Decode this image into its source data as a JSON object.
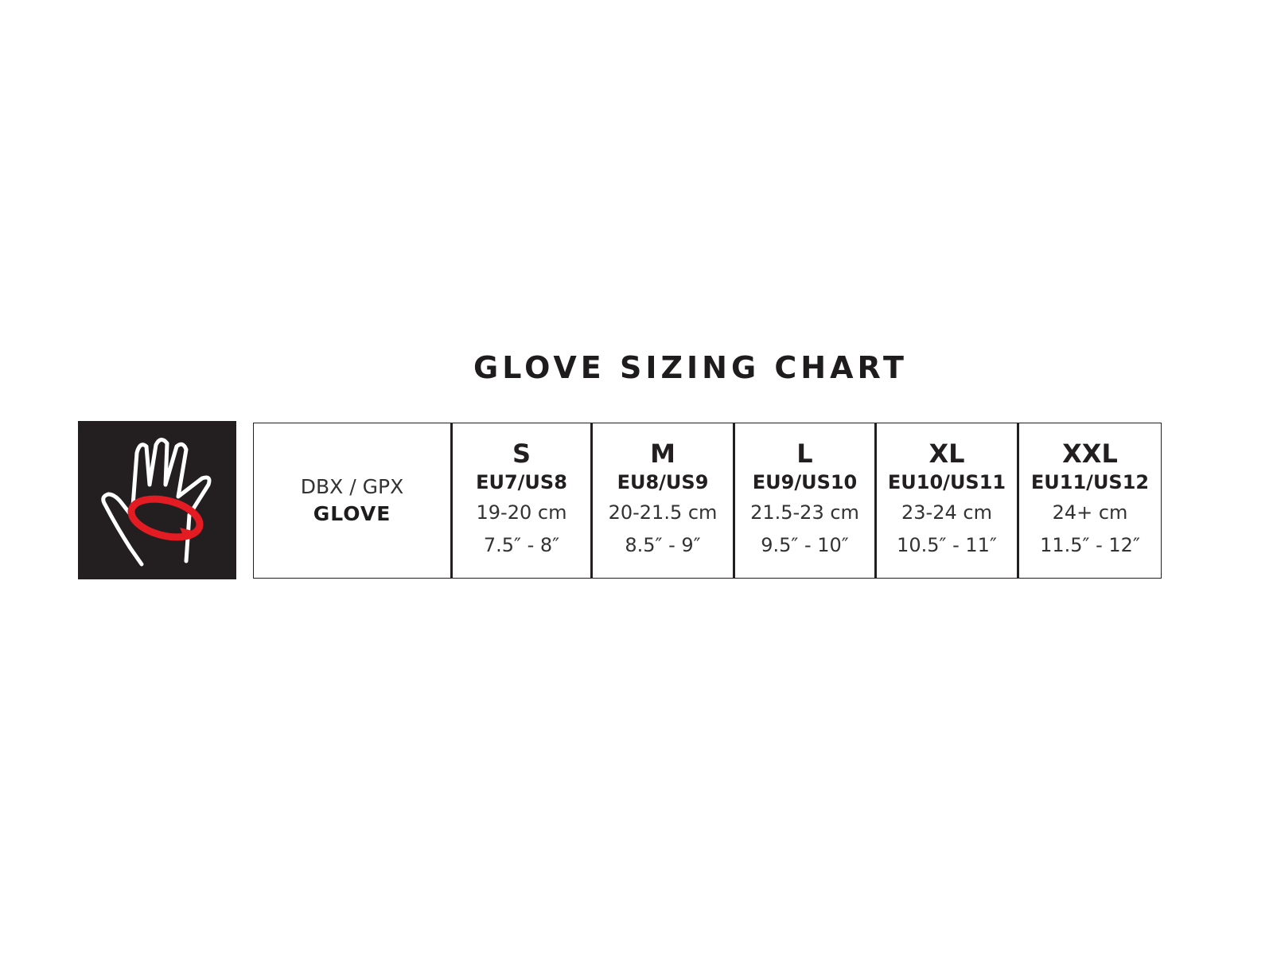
{
  "title": "GLOVE SIZING CHART",
  "icon": {
    "name": "hand-measure-icon",
    "colors": {
      "background": "#231f20",
      "hand": "#ffffff",
      "tape": "#e31b23"
    }
  },
  "model": {
    "line1": "DBX / GPX",
    "line2": "GLOVE"
  },
  "sizes": [
    {
      "size": "S",
      "eu_us": "EU7/US8",
      "cm": "19-20 cm",
      "inch": "7.5″ - 8″"
    },
    {
      "size": "M",
      "eu_us": "EU8/US9",
      "cm": "20-21.5 cm",
      "inch": "8.5″ - 9″"
    },
    {
      "size": "L",
      "eu_us": "EU9/US10",
      "cm": "21.5-23 cm",
      "inch": "9.5″ - 10″"
    },
    {
      "size": "XL",
      "eu_us": "EU10/US11",
      "cm": "23-24 cm",
      "inch": "10.5″ - 11″"
    },
    {
      "size": "XXL",
      "eu_us": "EU11/US12",
      "cm": "24+ cm",
      "inch": "11.5″ - 12″"
    }
  ]
}
